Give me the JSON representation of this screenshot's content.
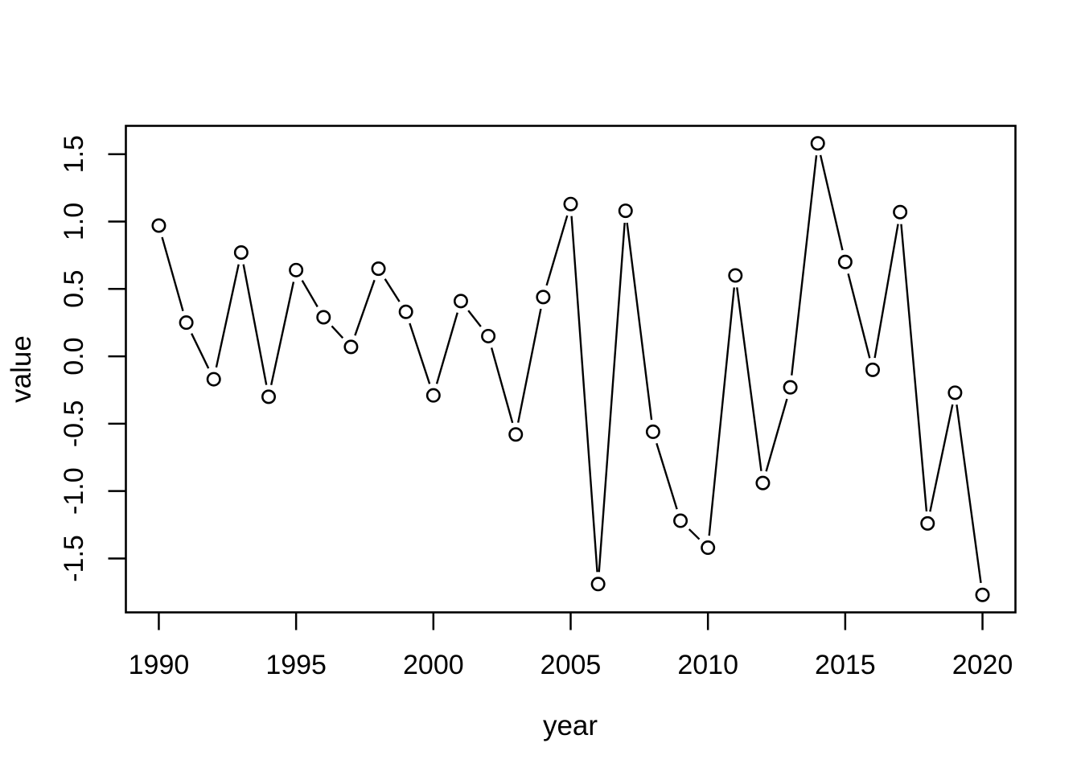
{
  "figure": {
    "background_color": "#ffffff",
    "foreground_color": "#000000"
  },
  "chart_data": {
    "type": "line",
    "title": "",
    "xlabel": "year",
    "ylabel": "value",
    "marker": "open-circle",
    "marker_fill": "#ffffff",
    "line_color": "#000000",
    "grid": false,
    "legend": null,
    "x": [
      1990,
      1991,
      1992,
      1993,
      1994,
      1995,
      1996,
      1997,
      1998,
      1999,
      2000,
      2001,
      2002,
      2003,
      2004,
      2005,
      2006,
      2007,
      2008,
      2009,
      2010,
      2011,
      2012,
      2013,
      2014,
      2015,
      2016,
      2017,
      2018,
      2019,
      2020
    ],
    "values": [
      0.97,
      0.25,
      -0.17,
      0.77,
      -0.3,
      0.64,
      0.29,
      0.07,
      0.65,
      0.33,
      -0.29,
      0.41,
      0.15,
      -0.58,
      0.44,
      1.13,
      -1.69,
      1.08,
      -0.56,
      -1.22,
      -1.42,
      0.6,
      -0.94,
      -0.23,
      1.58,
      0.7,
      -0.1,
      1.07,
      -1.24,
      -0.27,
      -1.77
    ],
    "xticks": [
      1990,
      1995,
      2000,
      2005,
      2010,
      2015,
      2020
    ],
    "xtick_labels": [
      "1990",
      "1995",
      "2000",
      "2005",
      "2010",
      "2015",
      "2020"
    ],
    "yticks": [
      -1.5,
      -1.0,
      -0.5,
      0.0,
      0.5,
      1.0,
      1.5
    ],
    "ytick_labels": [
      "-1.5",
      "-1.0",
      "-0.5",
      "0.0",
      "0.5",
      "1.0",
      "1.5"
    ],
    "xlim": [
      1988.8,
      2021.2
    ],
    "ylim": [
      -1.9,
      1.71
    ]
  }
}
